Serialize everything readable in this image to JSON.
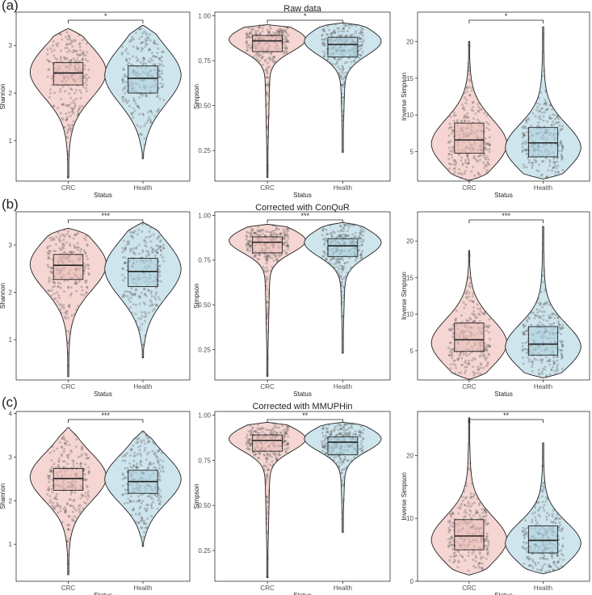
{
  "colors": {
    "CRC": "#f5d6d2",
    "Health": "#cfe5ee",
    "crc_box": "#e8bcb6",
    "health_box": "#a9cfdc",
    "points": "#4a4a4a"
  },
  "chart_data": [
    {
      "type": "violin",
      "panel": "(a)",
      "row_title": "Raw data",
      "metric": "Shannon",
      "xlabel": "Status",
      "ylabel": "Shannon",
      "categories": [
        "CRC",
        "Health"
      ],
      "ylim": [
        0.15,
        3.7
      ],
      "yticks": [
        1,
        2,
        3
      ],
      "significance": "*",
      "groups": [
        {
          "name": "CRC",
          "min": 0.22,
          "q1": 2.17,
          "median": 2.42,
          "q3": 2.64,
          "max": 3.35,
          "mode": 2.45,
          "spread": 0.55
        },
        {
          "name": "Health",
          "min": 0.62,
          "q1": 2.0,
          "median": 2.31,
          "q3": 2.57,
          "max": 3.42,
          "mode": 2.38,
          "spread": 0.6
        }
      ]
    },
    {
      "type": "violin",
      "panel": "(a)",
      "row_title": "Raw data",
      "metric": "Simpson",
      "xlabel": "Status",
      "ylabel": "Simpson",
      "categories": [
        "CRC",
        "Health"
      ],
      "ylim": [
        0.08,
        1.02
      ],
      "yticks": [
        0.25,
        0.5,
        0.75,
        1.0
      ],
      "significance": "*",
      "groups": [
        {
          "name": "CRC",
          "min": 0.1,
          "q1": 0.8,
          "median": 0.86,
          "q3": 0.89,
          "max": 0.95,
          "mode": 0.87,
          "spread": 0.07
        },
        {
          "name": "Health",
          "min": 0.24,
          "q1": 0.77,
          "median": 0.84,
          "q3": 0.88,
          "max": 0.96,
          "mode": 0.86,
          "spread": 0.08
        }
      ]
    },
    {
      "type": "violin",
      "panel": "(a)",
      "row_title": "Raw data",
      "metric": "Inverse Simpson",
      "xlabel": "Status",
      "ylabel": "Inverse Simpson",
      "categories": [
        "CRC",
        "Health"
      ],
      "ylim": [
        1,
        24
      ],
      "yticks": [
        5,
        10,
        15,
        20
      ],
      "significance": "*",
      "groups": [
        {
          "name": "CRC",
          "min": 1.1,
          "q1": 4.8,
          "median": 6.6,
          "q3": 8.9,
          "max": 20,
          "mode": 6.0,
          "spread": 3.4
        },
        {
          "name": "Health",
          "min": 1.3,
          "q1": 4.3,
          "median": 6.2,
          "q3": 8.3,
          "max": 22,
          "mode": 5.5,
          "spread": 3.2
        }
      ]
    },
    {
      "type": "violin",
      "panel": "(b)",
      "row_title": "Corrected with ConQuR",
      "metric": "Shannon",
      "xlabel": "Status",
      "ylabel": "Shannon",
      "categories": [
        "CRC",
        "Health"
      ],
      "ylim": [
        0.15,
        3.7
      ],
      "yticks": [
        1,
        2,
        3
      ],
      "significance": "***",
      "groups": [
        {
          "name": "CRC",
          "min": 0.22,
          "q1": 2.27,
          "median": 2.57,
          "q3": 2.8,
          "max": 3.35,
          "mode": 2.6,
          "spread": 0.55
        },
        {
          "name": "Health",
          "min": 0.62,
          "q1": 2.12,
          "median": 2.44,
          "q3": 2.72,
          "max": 3.47,
          "mode": 2.5,
          "spread": 0.6
        }
      ]
    },
    {
      "type": "violin",
      "panel": "(b)",
      "row_title": "Corrected with ConQuR",
      "metric": "Simpson",
      "xlabel": "Status",
      "ylabel": "Simpson",
      "categories": [
        "CRC",
        "Health"
      ],
      "ylim": [
        0.08,
        1.02
      ],
      "yticks": [
        0.25,
        0.5,
        0.75,
        1.0
      ],
      "significance": "***",
      "groups": [
        {
          "name": "CRC",
          "min": 0.1,
          "q1": 0.79,
          "median": 0.85,
          "q3": 0.88,
          "max": 0.95,
          "mode": 0.86,
          "spread": 0.07
        },
        {
          "name": "Health",
          "min": 0.23,
          "q1": 0.77,
          "median": 0.83,
          "q3": 0.87,
          "max": 0.96,
          "mode": 0.85,
          "spread": 0.08
        }
      ]
    },
    {
      "type": "violin",
      "panel": "(b)",
      "row_title": "Corrected with ConQuR",
      "metric": "Inverse Simpson",
      "xlabel": "Status",
      "ylabel": "Inverse Simpson",
      "categories": [
        "CRC",
        "Health"
      ],
      "ylim": [
        1,
        24
      ],
      "yticks": [
        5,
        10,
        15,
        20
      ],
      "significance": "***",
      "groups": [
        {
          "name": "CRC",
          "min": 1.1,
          "q1": 4.9,
          "median": 6.5,
          "q3": 8.8,
          "max": 18.7,
          "mode": 6.0,
          "spread": 3.3
        },
        {
          "name": "Health",
          "min": 1.3,
          "q1": 4.4,
          "median": 5.9,
          "q3": 8.3,
          "max": 22,
          "mode": 5.5,
          "spread": 3.1
        }
      ]
    },
    {
      "type": "violin",
      "panel": "(c)",
      "row_title": "Corrected with MMUPHin",
      "metric": "Shannon",
      "xlabel": "Status",
      "ylabel": "Shannon",
      "categories": [
        "CRC",
        "Health"
      ],
      "ylim": [
        0.15,
        4.05
      ],
      "yticks": [
        1,
        2,
        3,
        4
      ],
      "significance": "***",
      "groups": [
        {
          "name": "CRC",
          "min": 0.3,
          "q1": 2.24,
          "median": 2.51,
          "q3": 2.74,
          "max": 3.68,
          "mode": 2.55,
          "spread": 0.55
        },
        {
          "name": "Health",
          "min": 0.95,
          "q1": 2.17,
          "median": 2.44,
          "q3": 2.7,
          "max": 3.6,
          "mode": 2.5,
          "spread": 0.55
        }
      ]
    },
    {
      "type": "violin",
      "panel": "(c)",
      "row_title": "Corrected with MMUPHin",
      "metric": "Simpson",
      "xlabel": "Status",
      "ylabel": "Simpson",
      "categories": [
        "CRC",
        "Health"
      ],
      "ylim": [
        0.08,
        1.02
      ],
      "yticks": [
        0.25,
        0.5,
        0.75,
        1.0
      ],
      "significance": "**",
      "groups": [
        {
          "name": "CRC",
          "min": 0.1,
          "q1": 0.8,
          "median": 0.86,
          "q3": 0.89,
          "max": 0.96,
          "mode": 0.87,
          "spread": 0.07
        },
        {
          "name": "Health",
          "min": 0.35,
          "q1": 0.78,
          "median": 0.85,
          "q3": 0.88,
          "max": 0.96,
          "mode": 0.87,
          "spread": 0.07
        }
      ]
    },
    {
      "type": "violin",
      "panel": "(c)",
      "row_title": "Corrected with MMUPHin",
      "metric": "Inverse Simpson",
      "xlabel": "Status",
      "ylabel": "Inverse Simpson",
      "categories": [
        "CRC",
        "Health"
      ],
      "ylim": [
        0,
        27
      ],
      "yticks": [
        0,
        10,
        20
      ],
      "significance": "**",
      "groups": [
        {
          "name": "CRC",
          "min": 1.0,
          "q1": 5.0,
          "median": 7.2,
          "q3": 9.8,
          "max": 26,
          "mode": 6.5,
          "spread": 3.8
        },
        {
          "name": "Health",
          "min": 1.2,
          "q1": 4.5,
          "median": 6.5,
          "q3": 8.8,
          "max": 22,
          "mode": 6.0,
          "spread": 3.4
        }
      ]
    }
  ]
}
